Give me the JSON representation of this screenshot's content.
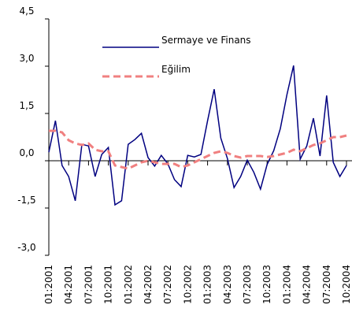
{
  "chart_data": {
    "type": "line",
    "categories": [
      "01:2001",
      null,
      null,
      "04:2001",
      null,
      null,
      "07:2001",
      null,
      null,
      "10:2001",
      null,
      null,
      "01:2002",
      null,
      null,
      "04:2002",
      null,
      null,
      "07:2002",
      null,
      null,
      "10:2002",
      null,
      null,
      "01:2003",
      null,
      null,
      "04:2003",
      null,
      null,
      "07:2003",
      null,
      null,
      "10:2003",
      null,
      null,
      "01:2004",
      null,
      null,
      "04:2004",
      null,
      null,
      "07:2004",
      null,
      null,
      "10:2004"
    ],
    "series": [
      {
        "name": "Sermaye ve Finans",
        "color": "#000080",
        "dashed": false,
        "values": [
          0.27,
          1.27,
          -0.15,
          -0.5,
          -1.27,
          0.52,
          0.47,
          -0.5,
          0.2,
          0.42,
          -1.4,
          -1.27,
          0.52,
          0.67,
          0.87,
          0.1,
          -0.17,
          0.17,
          -0.1,
          -0.6,
          -0.82,
          0.17,
          0.12,
          0.2,
          1.27,
          2.27,
          0.72,
          0.07,
          -0.85,
          -0.5,
          0.02,
          -0.37,
          -0.9,
          -0.12,
          0.32,
          1.02,
          2.1,
          3.02,
          0.05,
          0.47,
          1.35,
          0.15,
          2.07,
          -0.05,
          -0.5,
          -0.15
        ]
      },
      {
        "name": "Eğilim",
        "color": "#f08080",
        "dashed": true,
        "values": [
          0.95,
          0.95,
          0.9,
          0.65,
          0.55,
          0.5,
          0.55,
          0.35,
          0.3,
          0.3,
          -0.15,
          -0.2,
          -0.25,
          -0.15,
          -0.05,
          0,
          -0.05,
          -0.1,
          -0.1,
          -0.1,
          -0.2,
          -0.15,
          -0.05,
          0.05,
          0.15,
          0.25,
          0.3,
          0.25,
          0.15,
          0.1,
          0.15,
          0.15,
          0.15,
          0.12,
          0.15,
          0.2,
          0.25,
          0.35,
          0.3,
          0.4,
          0.5,
          0.55,
          0.65,
          0.75,
          0.75,
          0.8
        ]
      }
    ],
    "ylim": [
      -3,
      4.5
    ],
    "yticks": [
      {
        "value": -3,
        "label": "-3,0"
      },
      {
        "value": -1.5,
        "label": "-1,5"
      },
      {
        "value": 0,
        "label": "0,0"
      },
      {
        "value": 1.5,
        "label": "1,5"
      },
      {
        "value": 3,
        "label": "3,0"
      },
      {
        "value": 4.5,
        "label": "4,5"
      }
    ],
    "grid": false
  }
}
